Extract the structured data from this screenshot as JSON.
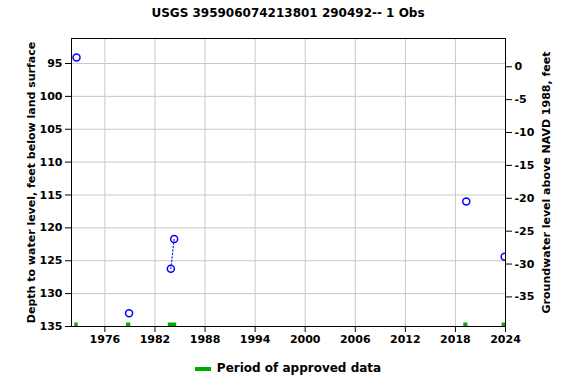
{
  "chart_data": {
    "type": "scatter",
    "title": "USGS 395906074213801 290492-- 1 Obs",
    "y_label": "Depth to water level, feet below land surface",
    "y2_label": "Groundwater level above NAVD 1988, feet",
    "x": [
      1972.6,
      1978.9,
      1983.9,
      1984.3,
      2019.3,
      2023.9
    ],
    "series": [
      {
        "type": "scatter",
        "marker": "circle",
        "color": "#0000ff",
        "values": [
          94.1,
          133.0,
          126.2,
          121.7,
          116.0,
          124.4
        ]
      },
      {
        "type": "line",
        "line_style": "dotted",
        "color": "#0000ff",
        "values": [
          null,
          null,
          126.2,
          121.7,
          null,
          null
        ]
      }
    ],
    "approved_periods": {
      "label": "Period of approved data",
      "color": "#00aa00",
      "ranges": [
        [
          1972.4,
          1972.8
        ],
        [
          1978.6,
          1979.1
        ],
        [
          1983.6,
          1984.6
        ],
        [
          2019.0,
          2019.5
        ],
        [
          2023.6,
          2024.0
        ]
      ]
    },
    "xlim": [
      1972,
      2024
    ],
    "xticks": [
      1976,
      1982,
      1988,
      1994,
      2000,
      2006,
      2012,
      2018,
      2024
    ],
    "ylim": [
      135,
      91.2
    ],
    "yticks": [
      95,
      100,
      105,
      110,
      115,
      120,
      125,
      130,
      135
    ],
    "y2lim": [
      -39.5,
      4.3
    ],
    "y2ticks": [
      0,
      -5,
      -10,
      -15,
      -20,
      -25,
      -30,
      -35
    ],
    "grid": true
  }
}
